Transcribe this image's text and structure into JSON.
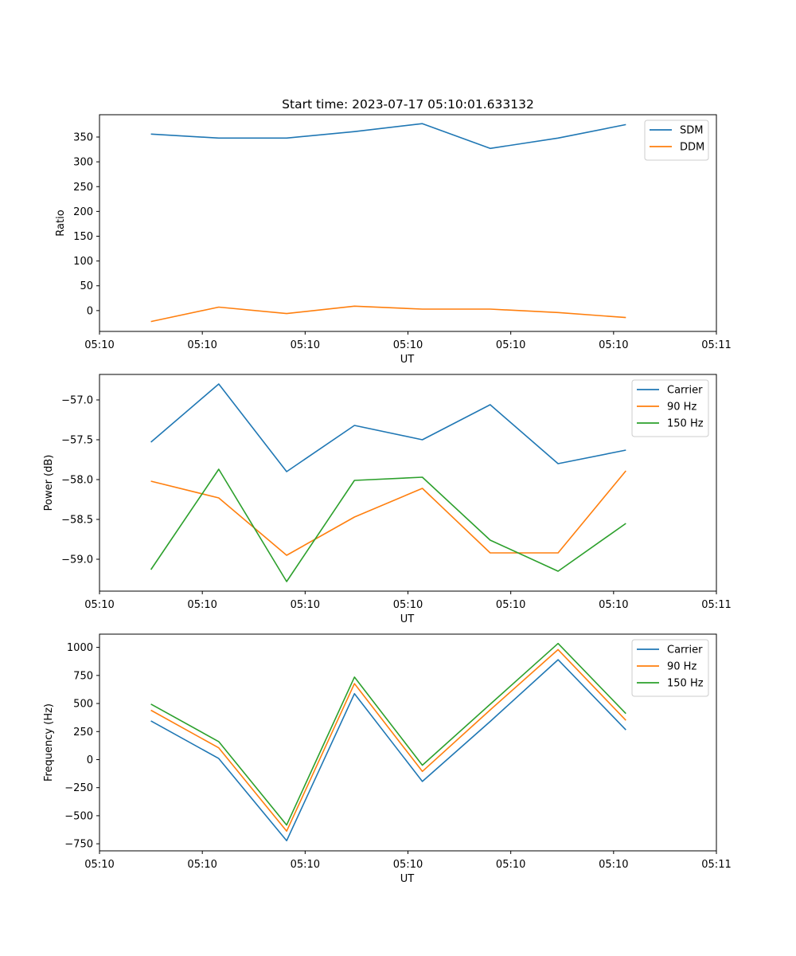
{
  "figure": {
    "title": "Start time: 2023-07-17 05:10:01.633132"
  },
  "colors": {
    "blue": "#1f77b4",
    "orange": "#ff7f0e",
    "green": "#2ca02c"
  },
  "chart_data": [
    {
      "type": "line",
      "xlabel": "UT",
      "ylabel": "Ratio",
      "xlim": [
        0,
        6
      ],
      "ylim": [
        -42,
        395
      ],
      "xtick_positions": [
        0,
        1,
        2,
        3,
        4,
        5,
        6
      ],
      "xtick_labels": [
        "05:10",
        "05:10",
        "05:10",
        "05:10",
        "05:10",
        "05:10",
        "05:11"
      ],
      "yticks": [
        0,
        50,
        100,
        150,
        200,
        250,
        300,
        350
      ],
      "ytick_labels": [
        "0",
        "50",
        "100",
        "150",
        "200",
        "250",
        "300",
        "350"
      ],
      "legend_position": "top-right",
      "x": [
        0.5,
        1.16,
        1.82,
        2.48,
        3.14,
        3.8,
        4.46,
        5.12
      ],
      "series": [
        {
          "name": "SDM",
          "color": "#1f77b4",
          "values": [
            356,
            348,
            348,
            361,
            377,
            327,
            348,
            375
          ]
        },
        {
          "name": "DDM",
          "color": "#ff7f0e",
          "values": [
            -22,
            7,
            -6,
            9,
            3,
            3,
            -4,
            -14
          ]
        }
      ]
    },
    {
      "type": "line",
      "xlabel": "UT",
      "ylabel": "Power (dB)",
      "xlim": [
        0,
        6
      ],
      "ylim": [
        -59.4,
        -56.68
      ],
      "xtick_positions": [
        0,
        1,
        2,
        3,
        4,
        5,
        6
      ],
      "xtick_labels": [
        "05:10",
        "05:10",
        "05:10",
        "05:10",
        "05:10",
        "05:10",
        "05:11"
      ],
      "yticks": [
        -59.0,
        -58.5,
        -58.0,
        -57.5,
        -57.0
      ],
      "ytick_labels": [
        "−59.0",
        "−58.5",
        "−58.0",
        "−57.5",
        "−57.0"
      ],
      "legend_position": "top-right",
      "x": [
        0.5,
        1.16,
        1.82,
        2.48,
        3.14,
        3.8,
        4.46,
        5.12
      ],
      "series": [
        {
          "name": "Carrier",
          "color": "#1f77b4",
          "values": [
            -57.53,
            -56.8,
            -57.9,
            -57.32,
            -57.5,
            -57.06,
            -57.8,
            -57.63
          ]
        },
        {
          "name": "90 Hz",
          "color": "#ff7f0e",
          "values": [
            -58.02,
            -58.23,
            -58.95,
            -58.47,
            -58.11,
            -58.92,
            -58.92,
            -57.89
          ]
        },
        {
          "name": "150 Hz",
          "color": "#2ca02c",
          "values": [
            -59.13,
            -57.87,
            -59.28,
            -58.01,
            -57.97,
            -58.76,
            -59.15,
            -58.55
          ]
        }
      ]
    },
    {
      "type": "line",
      "xlabel": "UT",
      "ylabel": "Frequency (Hz)",
      "xlim": [
        0,
        6
      ],
      "ylim": [
        -813,
        1118
      ],
      "xtick_positions": [
        0,
        1,
        2,
        3,
        4,
        5,
        6
      ],
      "xtick_labels": [
        "05:10",
        "05:10",
        "05:10",
        "05:10",
        "05:10",
        "05:10",
        "05:11"
      ],
      "yticks": [
        -750,
        -500,
        -250,
        0,
        250,
        500,
        750,
        1000
      ],
      "ytick_labels": [
        "−750",
        "−500",
        "−250",
        "0",
        "250",
        "500",
        "750",
        "1000"
      ],
      "legend_position": "top-right",
      "x": [
        0.5,
        1.16,
        1.82,
        2.48,
        3.14,
        3.8,
        4.46,
        5.12
      ],
      "series": [
        {
          "name": "Carrier",
          "color": "#1f77b4",
          "values": [
            345,
            10,
            -723,
            588,
            -195,
            340,
            890,
            265
          ]
        },
        {
          "name": "90 Hz",
          "color": "#ff7f0e",
          "values": [
            440,
            105,
            -638,
            677,
            -105,
            443,
            980,
            350
          ]
        },
        {
          "name": "150 Hz",
          "color": "#2ca02c",
          "values": [
            495,
            160,
            -583,
            735,
            -50,
            493,
            1035,
            410
          ]
        }
      ]
    }
  ]
}
